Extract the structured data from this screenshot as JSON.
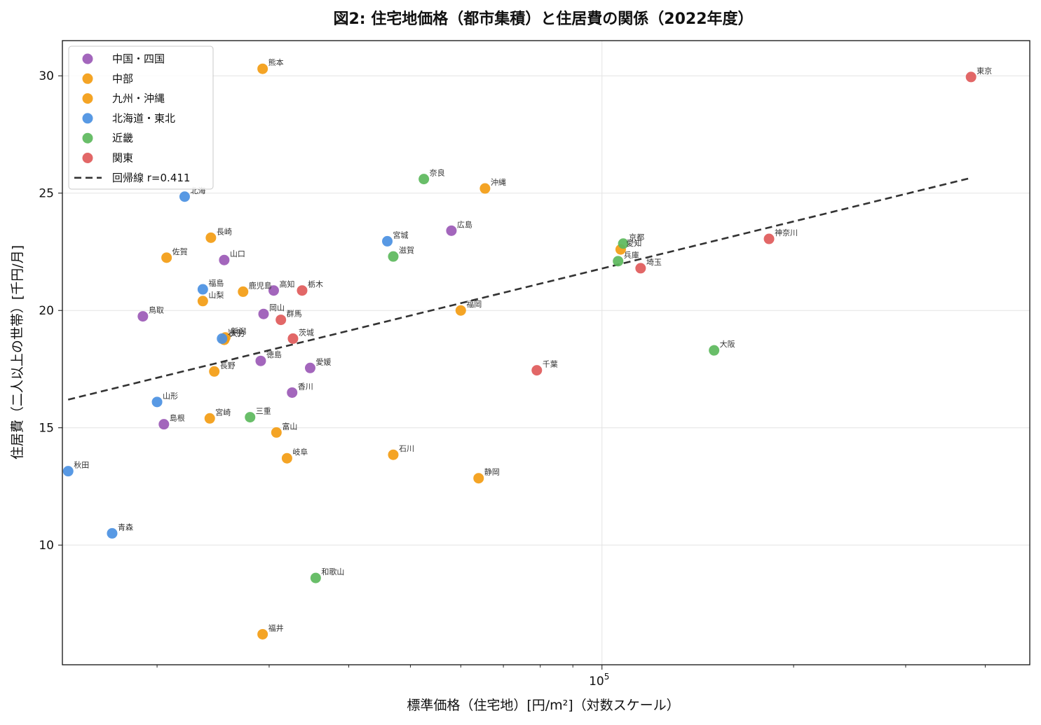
{
  "chart_data": {
    "type": "scatter",
    "title": "図2: 住宅地価格（都市集積）と住居費の関係（2022年度）",
    "xlabel": "標準価格（住宅地）[円/m²]（対数スケール）",
    "ylabel": "住居費（二人以上の世帯）[千円/月]",
    "x_scale": "log",
    "xlim": [
      14200,
      470000
    ],
    "ylim": [
      4.9,
      31.5
    ],
    "y_ticks": [
      10,
      15,
      20,
      25,
      30
    ],
    "x_tick_major": {
      "value": 100000,
      "label_base": "10",
      "label_exp": "5"
    },
    "x_minor_ticks": [
      20000,
      30000,
      40000,
      50000,
      60000,
      70000,
      80000,
      90000,
      200000,
      300000,
      400000
    ],
    "grid": true,
    "legend_position": "upper-left",
    "series": [
      {
        "name": "中国・四国",
        "color": "#9b59b6",
        "points": [
          {
            "label": "広島",
            "x": 58000,
            "y": 23.4
          },
          {
            "label": "山口",
            "x": 25500,
            "y": 22.15
          },
          {
            "label": "高知",
            "x": 30500,
            "y": 20.85
          },
          {
            "label": "岡山",
            "x": 29400,
            "y": 19.85
          },
          {
            "label": "鳥取",
            "x": 19000,
            "y": 19.75
          },
          {
            "label": "徳島",
            "x": 29100,
            "y": 17.85
          },
          {
            "label": "愛媛",
            "x": 34800,
            "y": 17.55
          },
          {
            "label": "香川",
            "x": 32600,
            "y": 16.5
          },
          {
            "label": "島根",
            "x": 20500,
            "y": 15.15
          }
        ]
      },
      {
        "name": "中部",
        "color": "#f39c12",
        "points": [
          {
            "label": "長野",
            "x": 24600,
            "y": 17.4
          },
          {
            "label": "新潟",
            "x": 25600,
            "y": 18.85
          },
          {
            "label": "山梨",
            "x": 23600,
            "y": 20.4
          },
          {
            "label": "富山",
            "x": 30800,
            "y": 14.8
          },
          {
            "label": "石川",
            "x": 47000,
            "y": 13.85
          },
          {
            "label": "福井",
            "x": 29300,
            "y": 6.2
          },
          {
            "label": "岐阜",
            "x": 32000,
            "y": 13.7
          },
          {
            "label": "静岡",
            "x": 64000,
            "y": 12.85
          },
          {
            "label": "愛知",
            "x": 107000,
            "y": 22.6
          }
        ]
      },
      {
        "name": "九州・沖縄",
        "color": "#f39c12",
        "points": [
          {
            "label": "熊本",
            "x": 29300,
            "y": 30.3
          },
          {
            "label": "沖縄",
            "x": 65500,
            "y": 25.2
          },
          {
            "label": "長崎",
            "x": 24300,
            "y": 23.1
          },
          {
            "label": "佐賀",
            "x": 20700,
            "y": 22.25
          },
          {
            "label": "鹿児島",
            "x": 27300,
            "y": 20.8
          },
          {
            "label": "福岡",
            "x": 60000,
            "y": 20.0
          },
          {
            "label": "大分",
            "x": 25500,
            "y": 18.75
          },
          {
            "label": "宮崎",
            "x": 24200,
            "y": 15.4
          }
        ]
      },
      {
        "name": "北海道・東北",
        "color": "#4a90e2",
        "points": [
          {
            "label": "北海",
            "x": 22100,
            "y": 24.85
          },
          {
            "label": "宮城",
            "x": 46000,
            "y": 22.95
          },
          {
            "label": "福島",
            "x": 23600,
            "y": 20.9
          },
          {
            "label": "岩手",
            "x": 25300,
            "y": 18.8
          },
          {
            "label": "山形",
            "x": 20000,
            "y": 16.1
          },
          {
            "label": "秋田",
            "x": 14500,
            "y": 13.15
          },
          {
            "label": "青森",
            "x": 17000,
            "y": 10.5
          }
        ]
      },
      {
        "name": "近畿",
        "color": "#5cb85c",
        "points": [
          {
            "label": "奈良",
            "x": 52500,
            "y": 25.6
          },
          {
            "label": "滋賀",
            "x": 47000,
            "y": 22.3
          },
          {
            "label": "京都",
            "x": 108000,
            "y": 22.85
          },
          {
            "label": "兵庫",
            "x": 106000,
            "y": 22.1
          },
          {
            "label": "大阪",
            "x": 150000,
            "y": 18.3
          },
          {
            "label": "三重",
            "x": 28000,
            "y": 15.45
          },
          {
            "label": "和歌山",
            "x": 35500,
            "y": 8.6
          }
        ]
      },
      {
        "name": "関東",
        "color": "#e05a5a",
        "points": [
          {
            "label": "東京",
            "x": 380000,
            "y": 29.95
          },
          {
            "label": "神奈川",
            "x": 183000,
            "y": 23.05
          },
          {
            "label": "埼玉",
            "x": 115000,
            "y": 21.8
          },
          {
            "label": "栃木",
            "x": 33800,
            "y": 20.85
          },
          {
            "label": "群馬",
            "x": 31300,
            "y": 19.6
          },
          {
            "label": "茨城",
            "x": 32700,
            "y": 18.8
          },
          {
            "label": "千葉",
            "x": 79000,
            "y": 17.45
          }
        ]
      }
    ],
    "regression": {
      "name": "回帰線 r=0.411",
      "color": "#333333",
      "x_start": 14500,
      "y_start": 16.2,
      "x_end": 380000,
      "y_end": 25.65
    }
  }
}
